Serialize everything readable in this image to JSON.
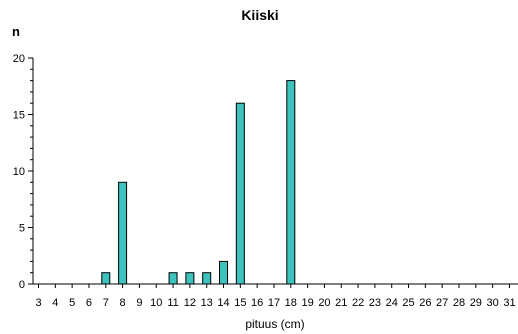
{
  "chart_data": {
    "type": "bar",
    "title": "Kiiski",
    "ylabel": "n",
    "xlabel": "pituus (cm)",
    "ylim": [
      0,
      20
    ],
    "yticks": [
      0,
      5,
      10,
      15,
      20
    ],
    "categories": [
      "3",
      "4",
      "5",
      "6",
      "7",
      "8",
      "9",
      "10",
      "11",
      "12",
      "13",
      "14",
      "15",
      "16",
      "17",
      "18",
      "19",
      "20",
      "21",
      "22",
      "23",
      "24",
      "25",
      "26",
      "27",
      "28",
      "29",
      "30",
      "31"
    ],
    "values": [
      0,
      0,
      0,
      0,
      1,
      9,
      0,
      0,
      1,
      1,
      1,
      2,
      16,
      0,
      0,
      18,
      0,
      0,
      0,
      0,
      0,
      0,
      0,
      0,
      0,
      0,
      0,
      0,
      0
    ],
    "grid": false,
    "legend": "none",
    "bar_color": "#3cc3c0",
    "bar_edge_color": "#000000"
  }
}
